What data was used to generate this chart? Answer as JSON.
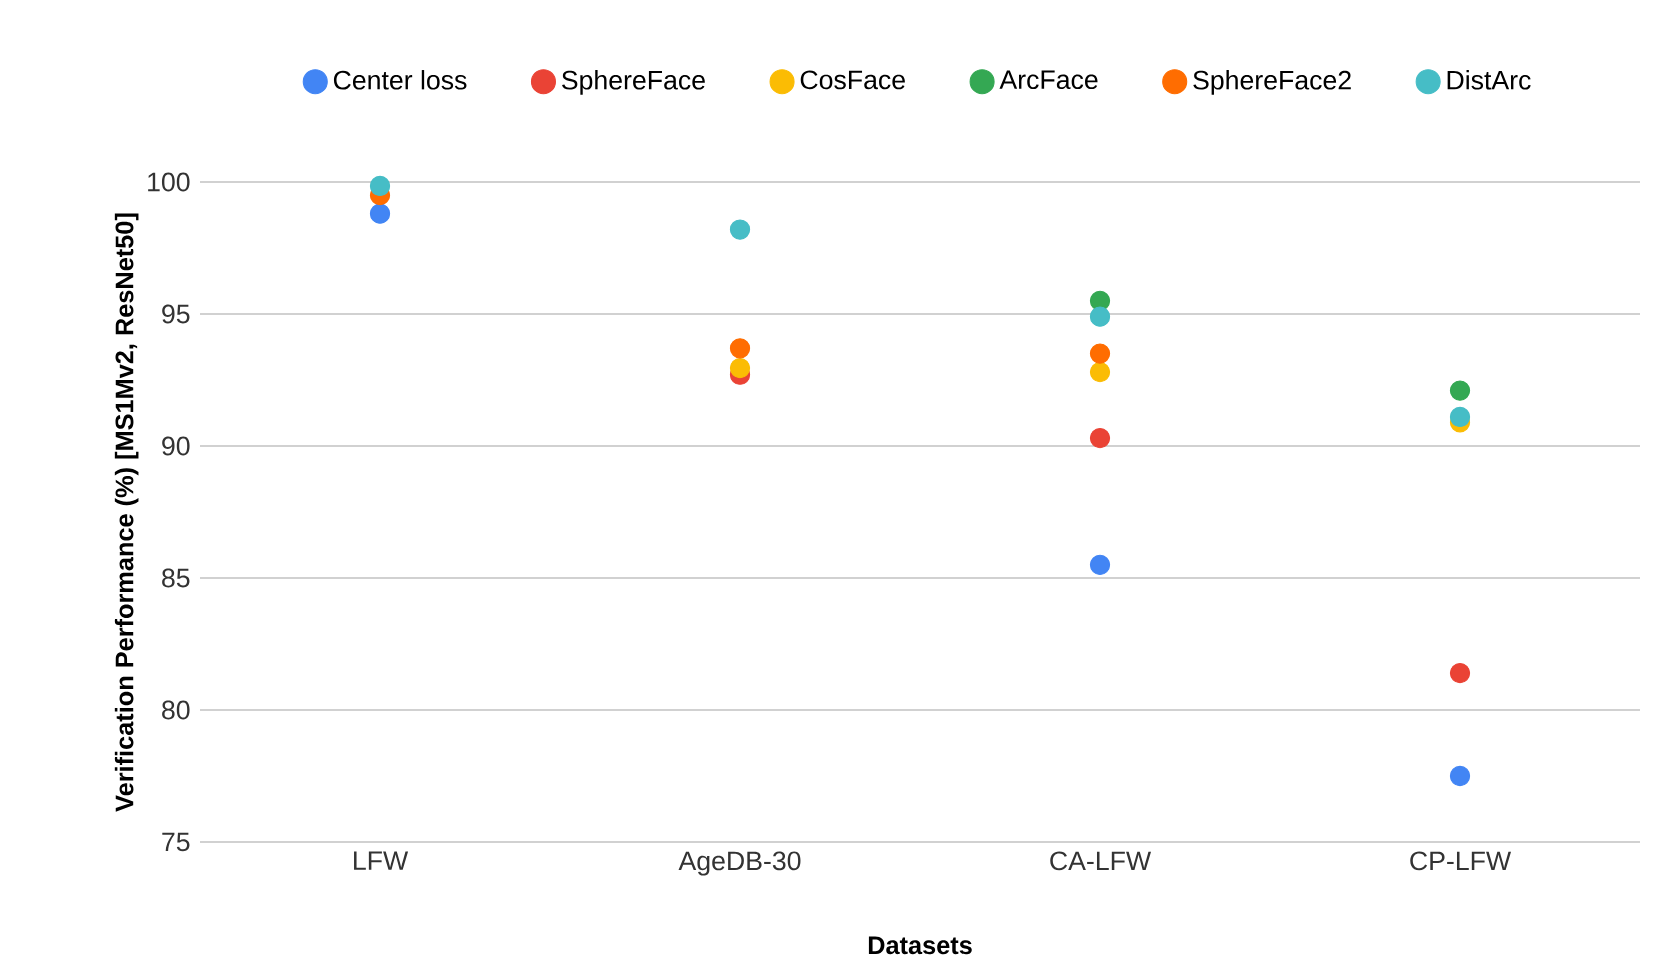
{
  "chart_data": {
    "type": "scatter",
    "xlabel": "Datasets",
    "ylabel": "Verification Performance (%) [MS1Mv2, ResNet50]",
    "categories": [
      "LFW",
      "AgeDB-30",
      "CA-LFW",
      "CP-LFW"
    ],
    "series": [
      {
        "name": "Center loss",
        "color": "#4285f4",
        "values": [
          98.8,
          null,
          85.5,
          77.5
        ]
      },
      {
        "name": "SphereFace",
        "color": "#ea4335",
        "values": [
          null,
          92.7,
          90.3,
          81.4
        ]
      },
      {
        "name": "CosFace",
        "color": "#fbbc04",
        "values": [
          null,
          92.95,
          92.8,
          90.9
        ]
      },
      {
        "name": "ArcFace",
        "color": "#34a853",
        "values": [
          null,
          null,
          95.5,
          92.1
        ]
      },
      {
        "name": "SphereFace2",
        "color": "#ff6d01",
        "values": [
          99.5,
          93.7,
          93.5,
          null
        ]
      },
      {
        "name": "DistArc",
        "color": "#46bdc6",
        "values": [
          99.85,
          98.2,
          94.9,
          91.1
        ]
      }
    ],
    "ylim": [
      75,
      100
    ],
    "yticks": [
      75,
      80,
      85,
      90,
      95,
      100
    ],
    "grid": "y",
    "legend": "top",
    "marker": "circle"
  }
}
